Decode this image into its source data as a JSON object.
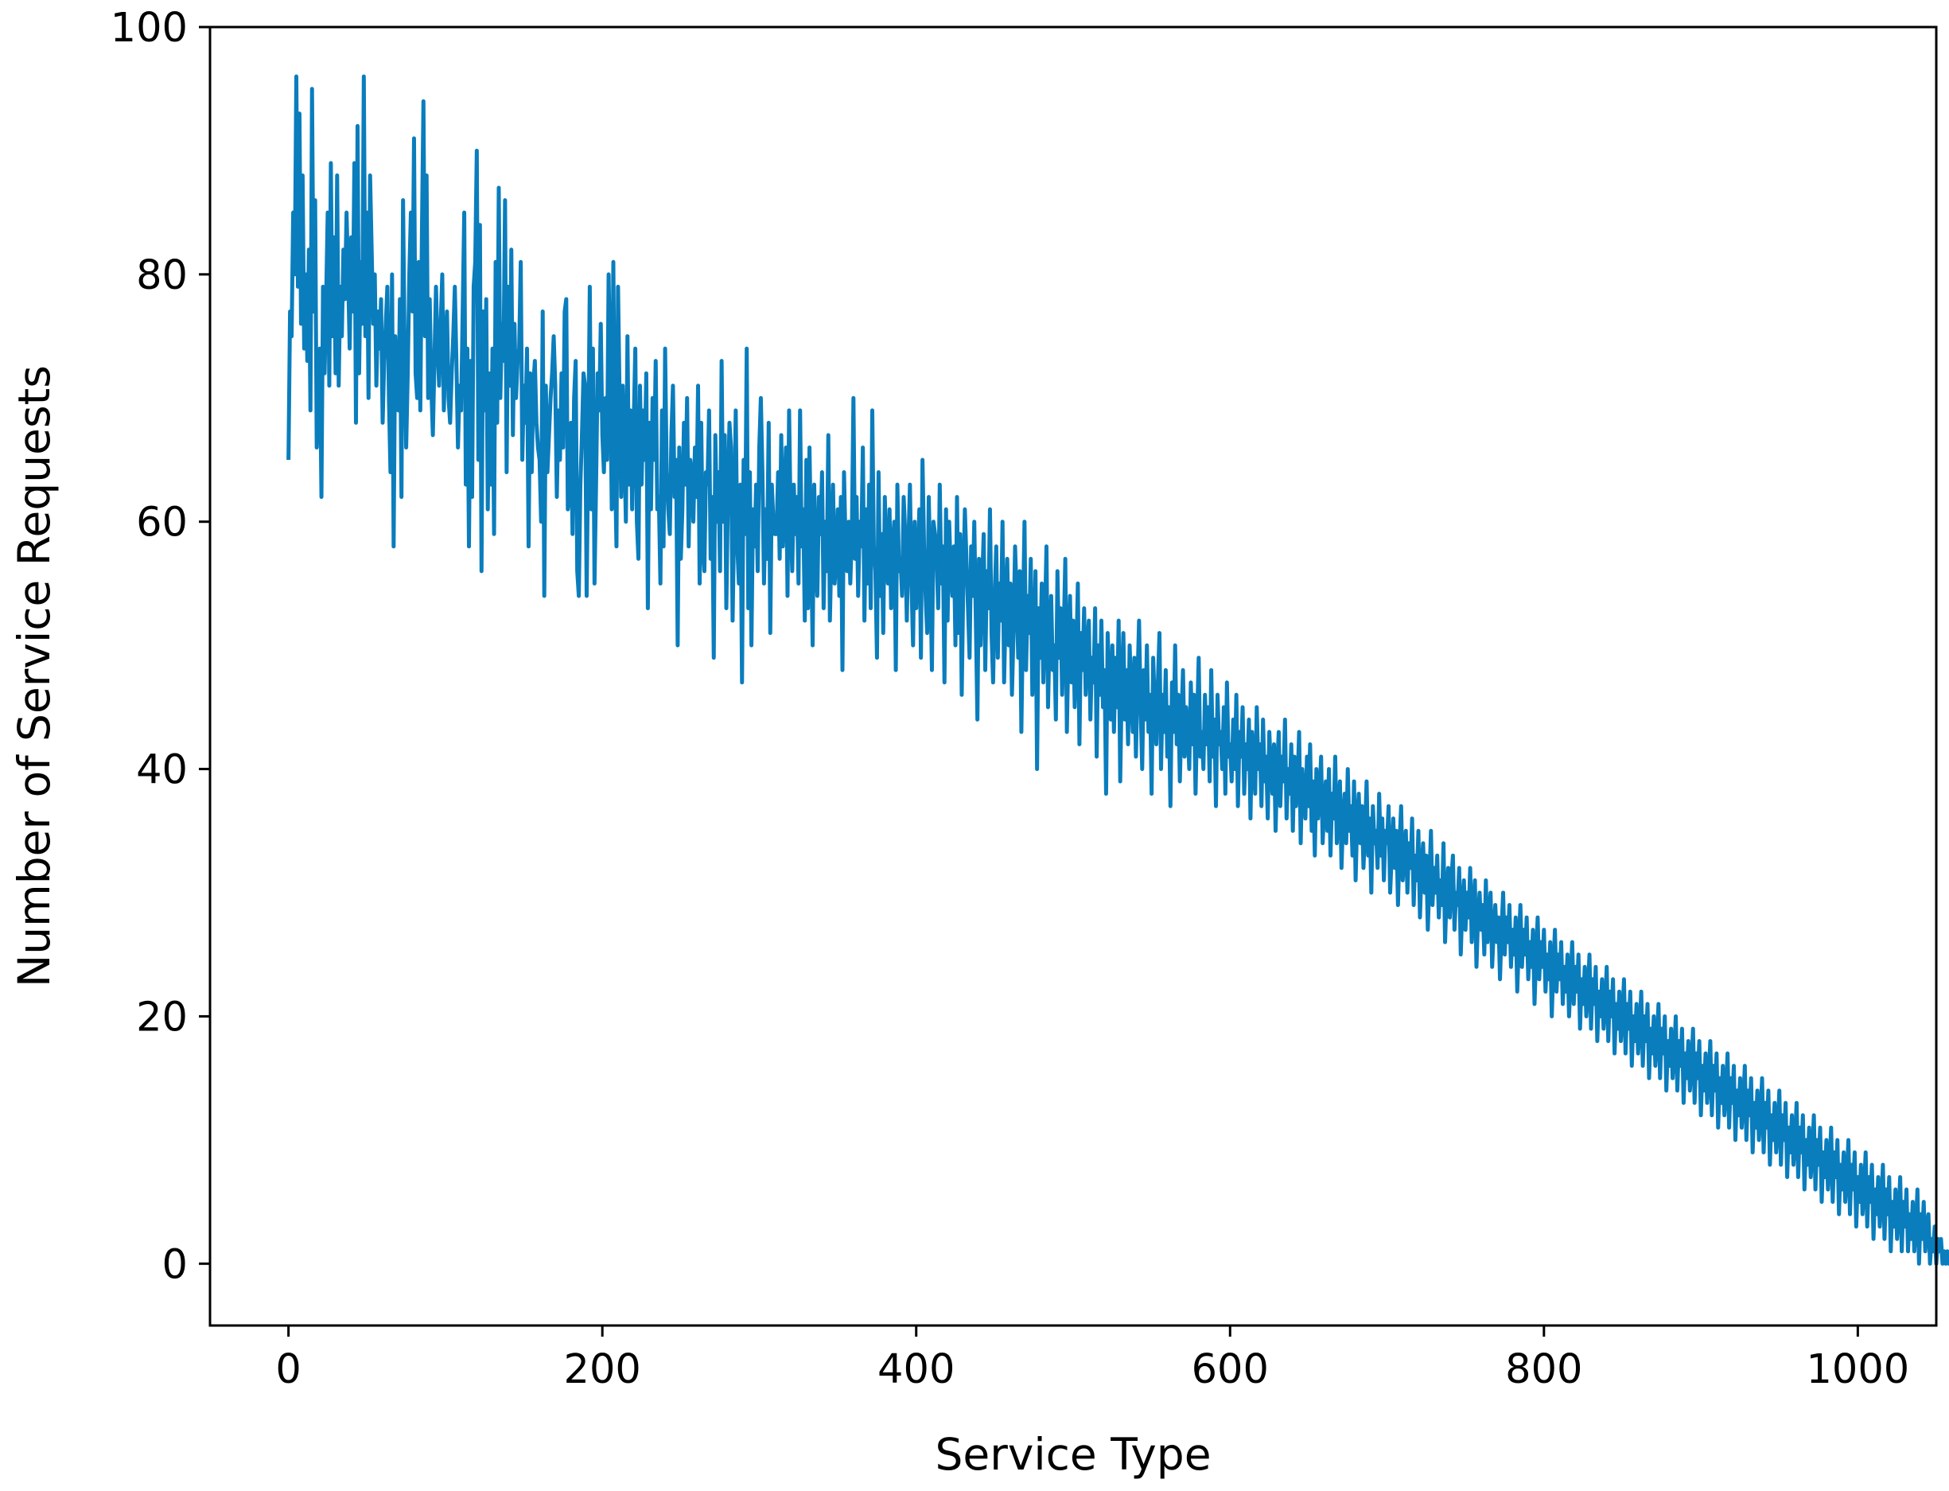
{
  "chart_data": {
    "type": "line",
    "title": "",
    "xlabel": "Service Type",
    "ylabel": "Number of Service Requests",
    "xlim": [
      -50,
      1050
    ],
    "ylim": [
      -5,
      100
    ],
    "xticks": [
      0,
      200,
      400,
      600,
      800,
      1000
    ],
    "yticks": [
      0,
      20,
      40,
      60,
      80,
      100
    ],
    "grid": false,
    "legend": "none",
    "line_color": "#0a7dbd",
    "series": [
      {
        "x_start": 0,
        "x_step": 1,
        "values": [
          65,
          77,
          75,
          85,
          80,
          96,
          79,
          93,
          76,
          88,
          74,
          80,
          73,
          82,
          69,
          95,
          77,
          86,
          66,
          70,
          74,
          62,
          79,
          72,
          78,
          85,
          71,
          89,
          75,
          83,
          72,
          88,
          71,
          79,
          75,
          82,
          78,
          85,
          80,
          74,
          83,
          77,
          89,
          68,
          92,
          72,
          81,
          76,
          96,
          75,
          85,
          70,
          88,
          82,
          76,
          80,
          71,
          77,
          74,
          78,
          68,
          73,
          76,
          79,
          70,
          64,
          80,
          58,
          75,
          71,
          69,
          78,
          62,
          86,
          74,
          66,
          72,
          80,
          85,
          77,
          91,
          72,
          70,
          81,
          69,
          83,
          94,
          75,
          88,
          70,
          78,
          71,
          67,
          73,
          79,
          74,
          71,
          76,
          80,
          69,
          74,
          77,
          70,
          68,
          72,
          75,
          79,
          73,
          66,
          71,
          69,
          77,
          85,
          63,
          74,
          58,
          73,
          62,
          79,
          81,
          90,
          65,
          84,
          56,
          77,
          69,
          78,
          61,
          72,
          63,
          74,
          59,
          81,
          68,
          87,
          70,
          76,
          73,
          86,
          64,
          79,
          71,
          82,
          67,
          76,
          70,
          73,
          74,
          81,
          65,
          71,
          68,
          74,
          58,
          72,
          64,
          71,
          73,
          68,
          66,
          65,
          60,
          77,
          54,
          71,
          64,
          67,
          70,
          72,
          75,
          71,
          62,
          69,
          65,
          72,
          66,
          77,
          78,
          61,
          62,
          68,
          59,
          70,
          73,
          56,
          54,
          63,
          67,
          72,
          71,
          54,
          66,
          79,
          61,
          74,
          55,
          63,
          72,
          69,
          76,
          67,
          64,
          70,
          65,
          80,
          72,
          61,
          81,
          65,
          58,
          79,
          70,
          62,
          71,
          66,
          60,
          75,
          63,
          69,
          61,
          68,
          74,
          60,
          57,
          71,
          63,
          69,
          65,
          72,
          53,
          68,
          61,
          70,
          65,
          73,
          61,
          62,
          55,
          69,
          58,
          74,
          64,
          61,
          59,
          67,
          71,
          62,
          65,
          50,
          66,
          57,
          61,
          68,
          63,
          70,
          58,
          65,
          64,
          60,
          66,
          62,
          71,
          55,
          68,
          58,
          56,
          64,
          63,
          69,
          57,
          62,
          49,
          67,
          60,
          64,
          56,
          73,
          60,
          67,
          53,
          62,
          68,
          66,
          52,
          60,
          69,
          58,
          55,
          63,
          47,
          65,
          59,
          74,
          53,
          64,
          50,
          61,
          58,
          63,
          56,
          66,
          70,
          64,
          55,
          61,
          57,
          68,
          51,
          63,
          60,
          59,
          59,
          64,
          57,
          67,
          58,
          62,
          66,
          54,
          69,
          60,
          56,
          63,
          59,
          62,
          55,
          69,
          58,
          61,
          52,
          65,
          53,
          66,
          58,
          50,
          63,
          57,
          54,
          62,
          59,
          64,
          53,
          60,
          56,
          67,
          52,
          58,
          63,
          55,
          57,
          61,
          54,
          62,
          48,
          64,
          58,
          56,
          60,
          55,
          59,
          70,
          57,
          62,
          54,
          60,
          58,
          66,
          52,
          61,
          55,
          63,
          53,
          69,
          58,
          56,
          49,
          64,
          54,
          59,
          51,
          62,
          57,
          55,
          61,
          53,
          58,
          60,
          48,
          63,
          56,
          57,
          54,
          62,
          59,
          52,
          58,
          63,
          55,
          50,
          60,
          53,
          57,
          61,
          49,
          65,
          58,
          54,
          51,
          62,
          56,
          48,
          60,
          59,
          57,
          53,
          63,
          55,
          58,
          47,
          61,
          52,
          60,
          56,
          54,
          58,
          50,
          62,
          51,
          59,
          46,
          55,
          61,
          57,
          53,
          49,
          58,
          54,
          60,
          52,
          44,
          57,
          50,
          55,
          59,
          48,
          56,
          53,
          61,
          51,
          47,
          54,
          58,
          49,
          55,
          52,
          60,
          47,
          53,
          57,
          50,
          55,
          46,
          51,
          58,
          54,
          49,
          56,
          43,
          52,
          60,
          48,
          54,
          51,
          57,
          46,
          50,
          56,
          40,
          53,
          49,
          55,
          47,
          52,
          58,
          45,
          51,
          54,
          48,
          50,
          44,
          56,
          49,
          53,
          46,
          51,
          57,
          43,
          50,
          54,
          47,
          52,
          45,
          49,
          55,
          42,
          51,
          48,
          53,
          46,
          50,
          52,
          44,
          49,
          47,
          53,
          41,
          50,
          46,
          52,
          45,
          48,
          38,
          51,
          47,
          44,
          50,
          43,
          49,
          45,
          52,
          39,
          47,
          51,
          44,
          48,
          42,
          50,
          46,
          43,
          49,
          41,
          47,
          52,
          45,
          40,
          48,
          44,
          50,
          43,
          46,
          38,
          49,
          45,
          42,
          47,
          51,
          40,
          46,
          43,
          48,
          41,
          45,
          37,
          47,
          43,
          50,
          42,
          46,
          39,
          44,
          48,
          41,
          45,
          43,
          40,
          47,
          42,
          46,
          38,
          44,
          49,
          41,
          43,
          40,
          46,
          42,
          45,
          39,
          48,
          41,
          44,
          37,
          46,
          42,
          43,
          40,
          45,
          38,
          47,
          41,
          42,
          39,
          44,
          40,
          46,
          37,
          43,
          41,
          45,
          38,
          42,
          40,
          44,
          36,
          43,
          41,
          38,
          45,
          40,
          42,
          37,
          44,
          39,
          41,
          36,
          43,
          40,
          38,
          42,
          35,
          40,
          43,
          37,
          41,
          39,
          44,
          36,
          40,
          38,
          42,
          35,
          41,
          37,
          39,
          43,
          34,
          40,
          38,
          36,
          41,
          37,
          42,
          35,
          39,
          33,
          40,
          36,
          38,
          41,
          34,
          37,
          39,
          35,
          40,
          33,
          38,
          36,
          41,
          34,
          37,
          39,
          32,
          36,
          38,
          34,
          40,
          35,
          37,
          33,
          39,
          31,
          36,
          38,
          34,
          37,
          32,
          35,
          39,
          33,
          36,
          30,
          37,
          34,
          35,
          32,
          38,
          33,
          36,
          31,
          35,
          34,
          37,
          30,
          33,
          36,
          32,
          35,
          29,
          34,
          37,
          31,
          33,
          35,
          30,
          34,
          32,
          36,
          29,
          33,
          31,
          35,
          28,
          32,
          34,
          30,
          33,
          27,
          31,
          35,
          29,
          32,
          30,
          33,
          28,
          31,
          29,
          34,
          26,
          30,
          32,
          28,
          31,
          33,
          27,
          30,
          29,
          32,
          25,
          29,
          31,
          27,
          30,
          28,
          32,
          26,
          29,
          31,
          24,
          28,
          30,
          27,
          29,
          25,
          31,
          26,
          28,
          30,
          24,
          27,
          29,
          26,
          28,
          23,
          27,
          30,
          25,
          28,
          26,
          29,
          24,
          27,
          25,
          28,
          22,
          26,
          29,
          24,
          27,
          25,
          28,
          23,
          26,
          24,
          27,
          21,
          25,
          28,
          23,
          26,
          24,
          27,
          22,
          25,
          23,
          26,
          20,
          24,
          27,
          22,
          25,
          23,
          26,
          21,
          24,
          22,
          25,
          20,
          23,
          26,
          21,
          24,
          22,
          25,
          19,
          23,
          21,
          24,
          20,
          22,
          25,
          19,
          23,
          21,
          24,
          18,
          22,
          20,
          23,
          19,
          21,
          24,
          18,
          22,
          20,
          23,
          17,
          21,
          19,
          22,
          18,
          20,
          23,
          17,
          21,
          19,
          22,
          16,
          20,
          18,
          21,
          17,
          19,
          22,
          16,
          20,
          18,
          21,
          15,
          19,
          17,
          20,
          16,
          18,
          21,
          15,
          19,
          17,
          20,
          14,
          18,
          16,
          19,
          15,
          17,
          20,
          14,
          18,
          16,
          19,
          13,
          17,
          15,
          18,
          14,
          16,
          19,
          13,
          17,
          15,
          18,
          12,
          16,
          14,
          17,
          13,
          15,
          18,
          12,
          16,
          14,
          17,
          11,
          15,
          13,
          16,
          12,
          14,
          17,
          11,
          15,
          13,
          16,
          10,
          14,
          12,
          15,
          11,
          13,
          16,
          10,
          14,
          12,
          15,
          9,
          13,
          11,
          14,
          10,
          12,
          15,
          9,
          13,
          11,
          14,
          8,
          12,
          10,
          13,
          9,
          11,
          14,
          8,
          12,
          10,
          13,
          7,
          11,
          9,
          12,
          8,
          10,
          13,
          7,
          11,
          9,
          12,
          6,
          10,
          8,
          11,
          7,
          9,
          12,
          6,
          10,
          8,
          11,
          5,
          9,
          7,
          10,
          6,
          8,
          11,
          5,
          9,
          7,
          10,
          4,
          8,
          6,
          9,
          5,
          7,
          10,
          4,
          8,
          6,
          9,
          3,
          7,
          5,
          8,
          4,
          6,
          9,
          3,
          7,
          5,
          8,
          2,
          6,
          4,
          7,
          3,
          5,
          8,
          2,
          6,
          4,
          7,
          1,
          5,
          3,
          6,
          2,
          4,
          7,
          1,
          5,
          3,
          6,
          1,
          4,
          2,
          5,
          1,
          3,
          6,
          0,
          4,
          2,
          5,
          1,
          3,
          4,
          0,
          2,
          1,
          3,
          0,
          2,
          1,
          2,
          0,
          1,
          0,
          1,
          0,
          0,
          0
        ]
      }
    ]
  }
}
